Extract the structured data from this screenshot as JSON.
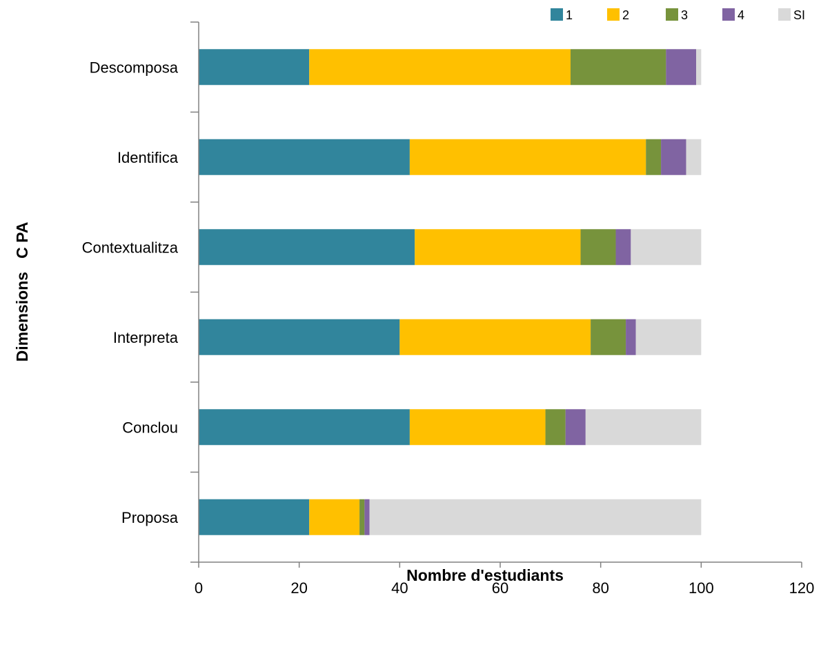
{
  "chart_data": {
    "type": "bar",
    "orientation": "horizontal",
    "stacked": true,
    "title": "",
    "xlabel": "Nombre d'estudiants",
    "ylabel": "Dimensions   C PA",
    "xlim": [
      0,
      120
    ],
    "xticks": [
      0,
      20,
      40,
      60,
      80,
      100,
      120
    ],
    "grid": false,
    "legend_position": "top-right",
    "categories": [
      "Descomposa",
      "Identifica",
      "Contextualitza",
      "Interpreta",
      "Conclou",
      "Proposa"
    ],
    "series": [
      {
        "name": "1",
        "color": "#31859c",
        "values": [
          22,
          42,
          43,
          40,
          42,
          22
        ]
      },
      {
        "name": "2",
        "color": "#ffc000",
        "values": [
          52,
          47,
          33,
          38,
          27,
          10
        ]
      },
      {
        "name": "3",
        "color": "#77933c",
        "values": [
          19,
          3,
          7,
          7,
          4,
          1
        ]
      },
      {
        "name": "4",
        "color": "#8064a2",
        "values": [
          6,
          5,
          3,
          2,
          4,
          1
        ]
      },
      {
        "name": "SI",
        "color": "#d9d9d9",
        "values": [
          1,
          3,
          14,
          13,
          23,
          66
        ]
      }
    ]
  }
}
